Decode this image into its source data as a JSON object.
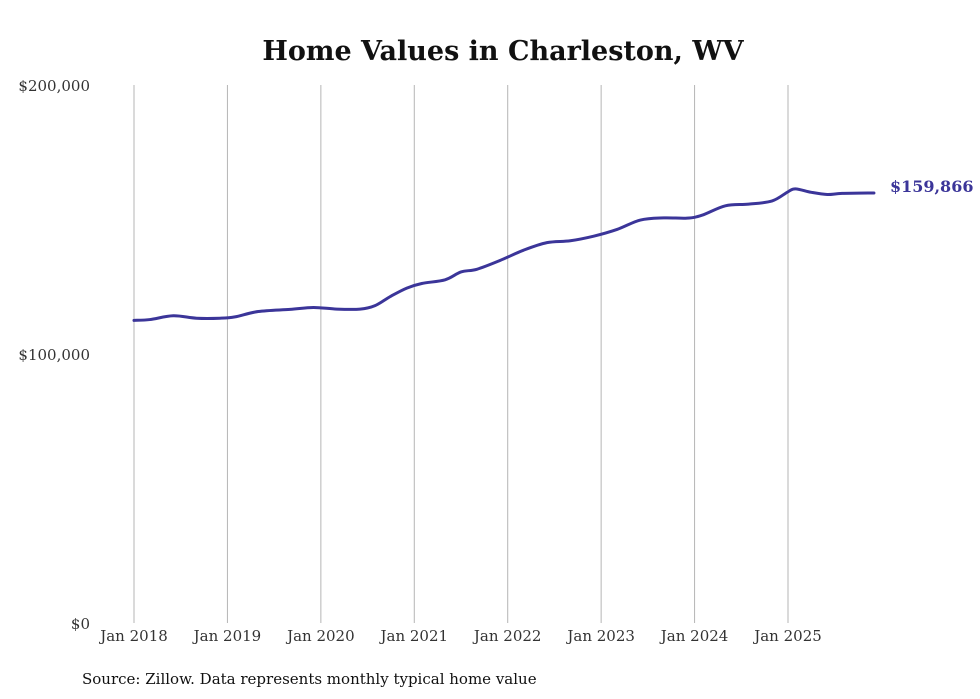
{
  "chart_data": {
    "type": "line",
    "title": "Home Values in Charleston, WV",
    "xlabel": "",
    "ylabel": "",
    "ylim": [
      0,
      200000
    ],
    "xlim": [
      2018.0,
      2025.92
    ],
    "y_ticks": [
      {
        "value": 0,
        "label": "$0"
      },
      {
        "value": 100000,
        "label": "$100,000"
      },
      {
        "value": 200000,
        "label": "$200,000"
      }
    ],
    "x_ticks": [
      {
        "value": 2018,
        "label": "Jan 2018"
      },
      {
        "value": 2019,
        "label": "Jan 2019"
      },
      {
        "value": 2020,
        "label": "Jan 2020"
      },
      {
        "value": 2021,
        "label": "Jan 2021"
      },
      {
        "value": 2022,
        "label": "Jan 2022"
      },
      {
        "value": 2023,
        "label": "Jan 2023"
      },
      {
        "value": 2024,
        "label": "Jan 2024"
      },
      {
        "value": 2025,
        "label": "Jan 2025"
      }
    ],
    "grid": "vertical lines at x ticks",
    "series": [
      {
        "name": "Typical home value",
        "color": "#3b3599",
        "x": [
          2018.0,
          2018.17,
          2018.42,
          2018.67,
          2018.92,
          2019.08,
          2019.33,
          2019.67,
          2019.92,
          2020.17,
          2020.42,
          2020.58,
          2020.75,
          2020.92,
          2021.08,
          2021.33,
          2021.5,
          2021.67,
          2021.92,
          2022.17,
          2022.42,
          2022.67,
          2022.92,
          2023.17,
          2023.42,
          2023.67,
          2023.92,
          2024.08,
          2024.33,
          2024.58,
          2024.83,
          2025.0,
          2025.08,
          2025.25,
          2025.42,
          2025.58,
          2025.92
        ],
        "values": [
          112500,
          112800,
          114200,
          113300,
          113300,
          113800,
          115800,
          116600,
          117300,
          116700,
          116700,
          118000,
          121500,
          124500,
          126200,
          127600,
          130500,
          131500,
          134800,
          138600,
          141400,
          142100,
          143800,
          146300,
          149800,
          150600,
          150500,
          151600,
          155100,
          155700,
          156900,
          160300,
          161400,
          160100,
          159300,
          159700,
          159866
        ]
      }
    ],
    "end_label": "$159,866",
    "source": "Source: Zillow. Data represents monthly typical home value"
  }
}
